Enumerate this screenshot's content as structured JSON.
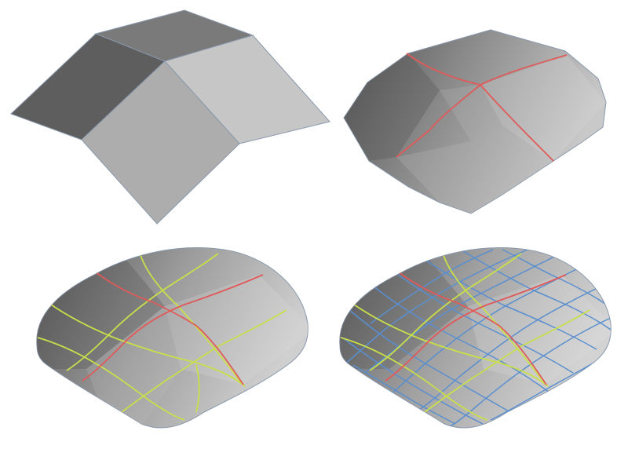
{
  "figure": {
    "panels": [
      {
        "id": "level-0",
        "subdivision_level": 0,
        "line_colors": []
      },
      {
        "id": "level-1",
        "subdivision_level": 1,
        "line_colors": [
          "#e05a5a"
        ]
      },
      {
        "id": "level-2",
        "subdivision_level": 2,
        "line_colors": [
          "#e05a5a",
          "#c9df4a"
        ]
      },
      {
        "id": "level-3",
        "subdivision_level": 3,
        "line_colors": [
          "#e05a5a",
          "#c9df4a",
          "#5a8fcf"
        ]
      }
    ],
    "colors": {
      "background": "#ffffff",
      "edge_level_1": "#e05a5a",
      "edge_level_2": "#c9df4a",
      "edge_level_3": "#5a8fcf",
      "surface_dark": "#5a5a5a",
      "surface_light": "#c8c8c8",
      "outline": "#7f8fa6"
    }
  }
}
